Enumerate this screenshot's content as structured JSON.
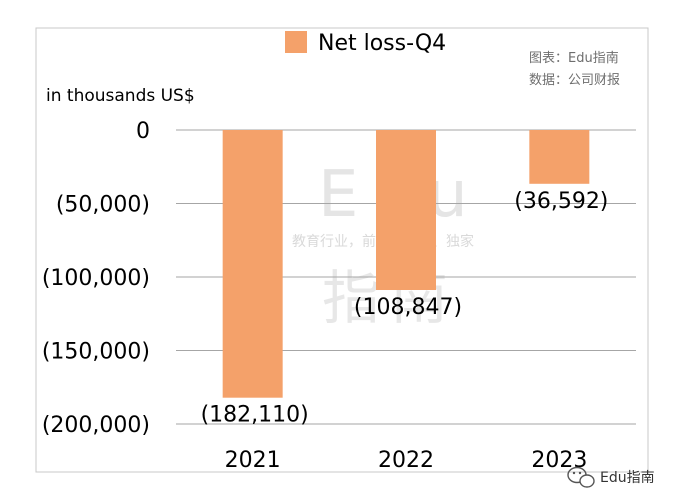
{
  "chart_data": {
    "type": "bar",
    "categories": [
      "2021",
      "2022",
      "2023"
    ],
    "series": [
      {
        "name": "Net loss-Q4",
        "values": [
          -182110,
          -108847,
          -36592
        ]
      }
    ],
    "data_labels": [
      "(182,110)",
      "(108,847)",
      "(36,592)"
    ],
    "ylabel": "in thousands US$",
    "ylim": [
      -200000,
      0
    ],
    "yticks": [
      0,
      -50000,
      -100000,
      -150000,
      -200000
    ],
    "ytick_labels": [
      "0",
      "(50,000)",
      "(100,000)",
      "(150,000)",
      "(200,000)"
    ],
    "grid": true,
    "legend": "top-center",
    "bar_color": "#f4a16a"
  },
  "credits": {
    "chart_by": "图表：Edu指南",
    "data_from": "数据：公司财报"
  },
  "watermark": {
    "latin": "Edu",
    "tagline": "教育行业，前沿、深度、独家",
    "chinese": "指南"
  },
  "brand": {
    "label": "Edu指南",
    "icon": "wechat-icon"
  }
}
